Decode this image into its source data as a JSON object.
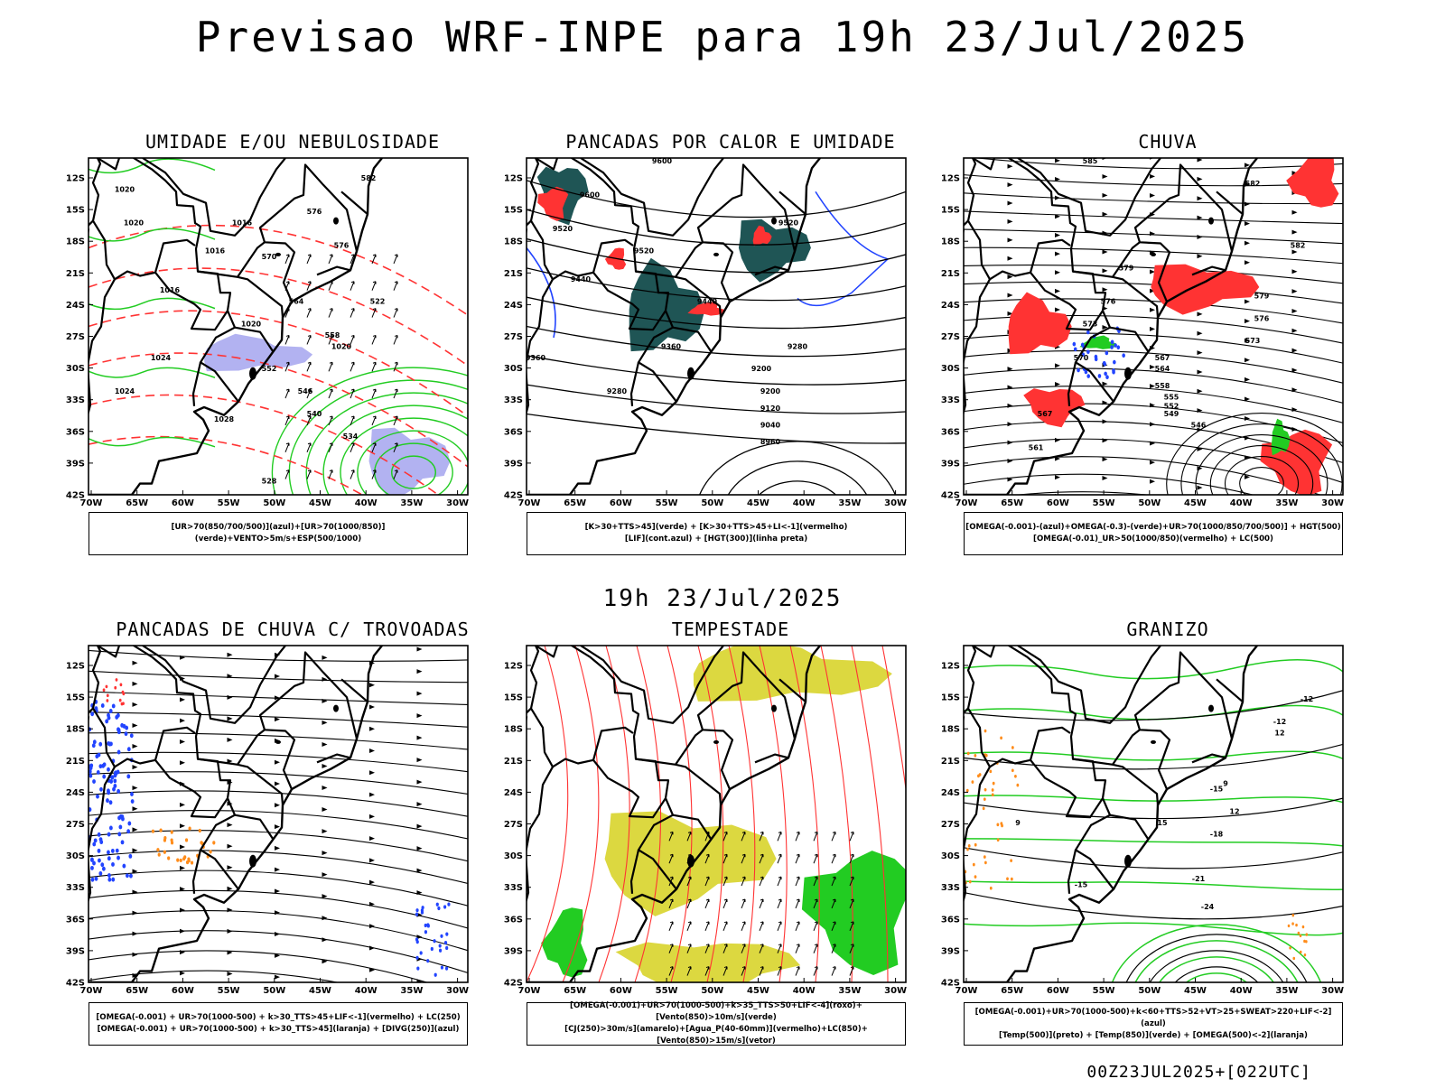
{
  "header": {
    "title": "Previsao WRF-INPE  para 19h 23/Jul/2025",
    "mid_time": "19h 23/Jul/2025",
    "footer_time": "00Z23JUL2025+[022UTC]"
  },
  "axes": {
    "lat_labels": [
      "12S",
      "15S",
      "18S",
      "21S",
      "24S",
      "27S",
      "30S",
      "33S",
      "36S",
      "39S",
      "42S"
    ],
    "lon_labels": [
      "70W",
      "65W",
      "60W",
      "55W",
      "50W",
      "45W",
      "40W",
      "35W",
      "30W"
    ]
  },
  "panels": [
    {
      "title": "UMIDADE E/OU NEBULOSIDADE",
      "legend": [
        "[UR>70(850/700/500)](azul)+[UR>70(1000/850)](verde)+VENTO>5m/s+ESP(500/1000)"
      ],
      "labels": [
        "1016",
        "1016",
        "1020",
        "1020",
        "1024",
        "1024",
        "1028",
        "1020",
        "1016",
        "1020",
        "570",
        "576",
        "576",
        "564",
        "558",
        "552",
        "546",
        "540",
        "534",
        "528",
        "522",
        "582"
      ]
    },
    {
      "title": "PANCADAS POR CALOR E UMIDADE",
      "legend": [
        "[K>30+TTS>45](verde) + [K>30+TTS>45+LI<-1](vermelho)",
        "[LIF](cont.azul) + [HGT(300)](linha preta)"
      ],
      "labels": [
        "9600",
        "9600",
        "9520",
        "9520",
        "9520",
        "9440",
        "9440",
        "9360",
        "9360",
        "9280",
        "9280",
        "9200",
        "9200",
        "9120",
        "9040",
        "8960"
      ]
    },
    {
      "title": "CHUVA",
      "legend": [
        "[OMEGA(-0.001)-(azul)+OMEGA(-0.3)-(verde)+UR>70(1000/850/700/500)] + HGT(500)",
        "[OMEGA(-0.01)_UR>50(1000/850)(vermelho) + LC(500)"
      ],
      "labels": [
        "585",
        "582",
        "582",
        "579",
        "579",
        "576",
        "576",
        "573",
        "573",
        "570",
        "567",
        "567",
        "564",
        "561",
        "558",
        "555",
        "552",
        "549",
        "546"
      ]
    },
    {
      "title": "PANCADAS DE CHUVA C/ TROVOADAS",
      "legend": [
        "[OMEGA(-0.001) + UR>70(1000-500) + k>30_TTS>45+LIF<-1](vermelho) + LC(250)",
        "[OMEGA(-0.001) + UR>70(1000-500) + k>30_TTS>45](laranja) + [DIVG(250)](azul)"
      ],
      "labels": []
    },
    {
      "title": "TEMPESTADE",
      "legend": [
        "[OMEGA(-0.001)+UR>70(1000-500)+k>35_TTS>50+LIF<-4](roxo)+[Vento(850)>10m/s](verde)",
        "[CJ(250)>30m/s](amarelo)+[Agua_P(40-60mm)](vermelho)+LC(850)+[Vento(850)>15m/s](vetor)"
      ],
      "labels": []
    },
    {
      "title": "GRANIZO",
      "legend": [
        "[OMEGA(-0.001)+UR>70(1000-500)+k<60+TTS>52+VT>25+SWEAT>220+LIF<-2](azul)",
        "[Temp(500)](preto) + [Temp(850)](verde) + [OMEGA(500)<-2](laranja)"
      ],
      "labels": [
        "-12",
        "-12",
        "-15",
        "-15",
        "-18",
        "-21",
        "-24",
        "12",
        "12",
        "9",
        "9",
        "15"
      ]
    }
  ],
  "colors": {
    "green": "#22cc22",
    "red": "#ff3333",
    "blue": "#2244ff",
    "lavender": "#aaaaf0",
    "darkteal": "#1f5555",
    "yellow": "#dcd840",
    "orange": "#ff8c1a",
    "black": "#000000"
  }
}
